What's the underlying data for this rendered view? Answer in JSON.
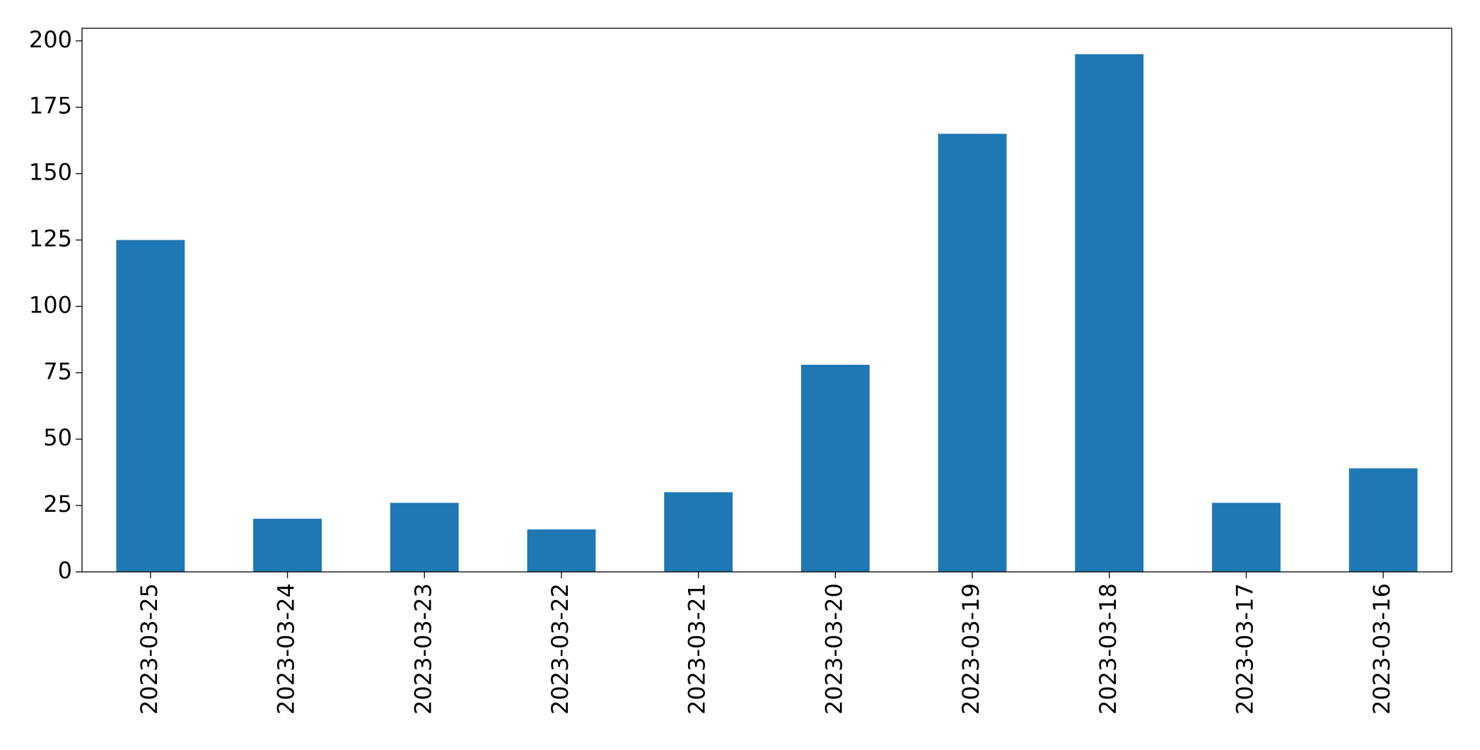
{
  "chart_data": {
    "type": "bar",
    "categories": [
      "2023-03-25",
      "2023-03-24",
      "2023-03-23",
      "2023-03-22",
      "2023-03-21",
      "2023-03-20",
      "2023-03-19",
      "2023-03-18",
      "2023-03-17",
      "2023-03-16"
    ],
    "values": [
      125,
      20,
      26,
      16,
      30,
      78,
      165,
      195,
      26,
      39
    ],
    "color": "#1f77b4",
    "ylim": [
      0,
      204.75
    ],
    "yticks": [
      0,
      25,
      50,
      75,
      100,
      125,
      150,
      175,
      200
    ],
    "grid": false
  }
}
